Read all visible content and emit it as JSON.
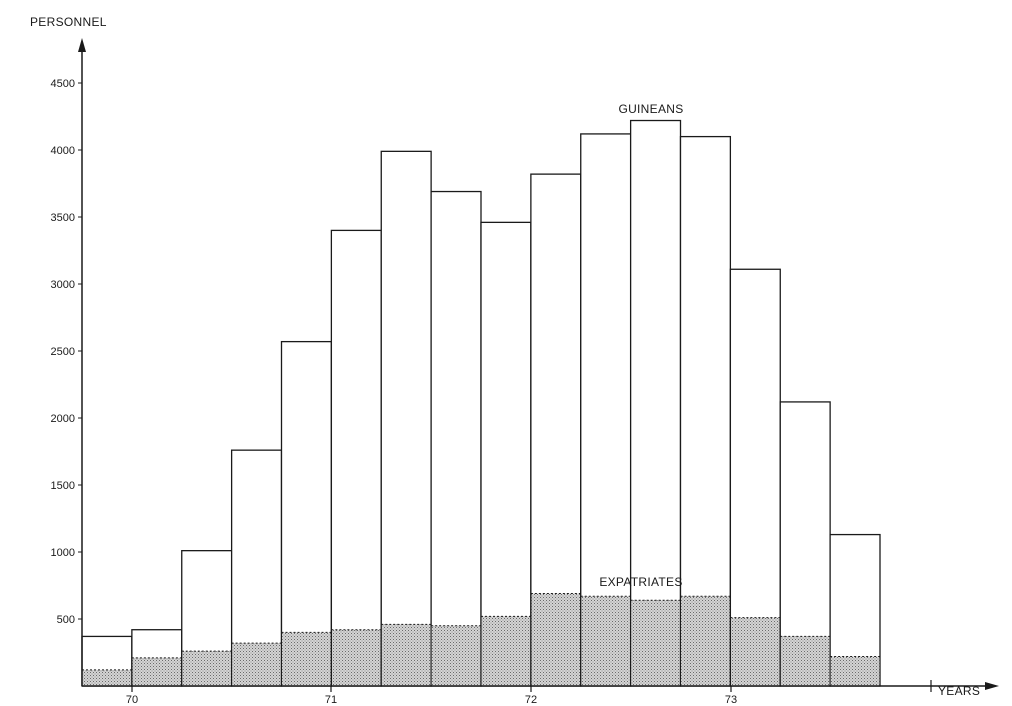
{
  "chart_data": {
    "type": "bar",
    "stacked": true,
    "title": "",
    "ylabel": "PERSONNEL",
    "xlabel": "YEARS",
    "ylim": [
      0,
      4700
    ],
    "yticks": [
      500,
      1000,
      1500,
      2000,
      2500,
      3000,
      3500,
      4000,
      4500
    ],
    "xticks": [
      "70",
      "71",
      "72",
      "73"
    ],
    "grid": false,
    "legend": "none",
    "periods": 16,
    "series": [
      {
        "name": "EXPATRIATES",
        "values": [
          120,
          210,
          260,
          320,
          400,
          420,
          460,
          450,
          520,
          690,
          670,
          640,
          670,
          510,
          370,
          220
        ]
      },
      {
        "name": "GUINEANS",
        "values": [
          250,
          210,
          750,
          1440,
          2170,
          2980,
          3530,
          3240,
          2940,
          3130,
          3450,
          3580,
          3430,
          2600,
          1750,
          910
        ]
      }
    ],
    "colors": {
      "outline": "#1a1a1a",
      "expatriates_fill": "#bdbdbd",
      "guineans_fill": "#ffffff"
    }
  }
}
